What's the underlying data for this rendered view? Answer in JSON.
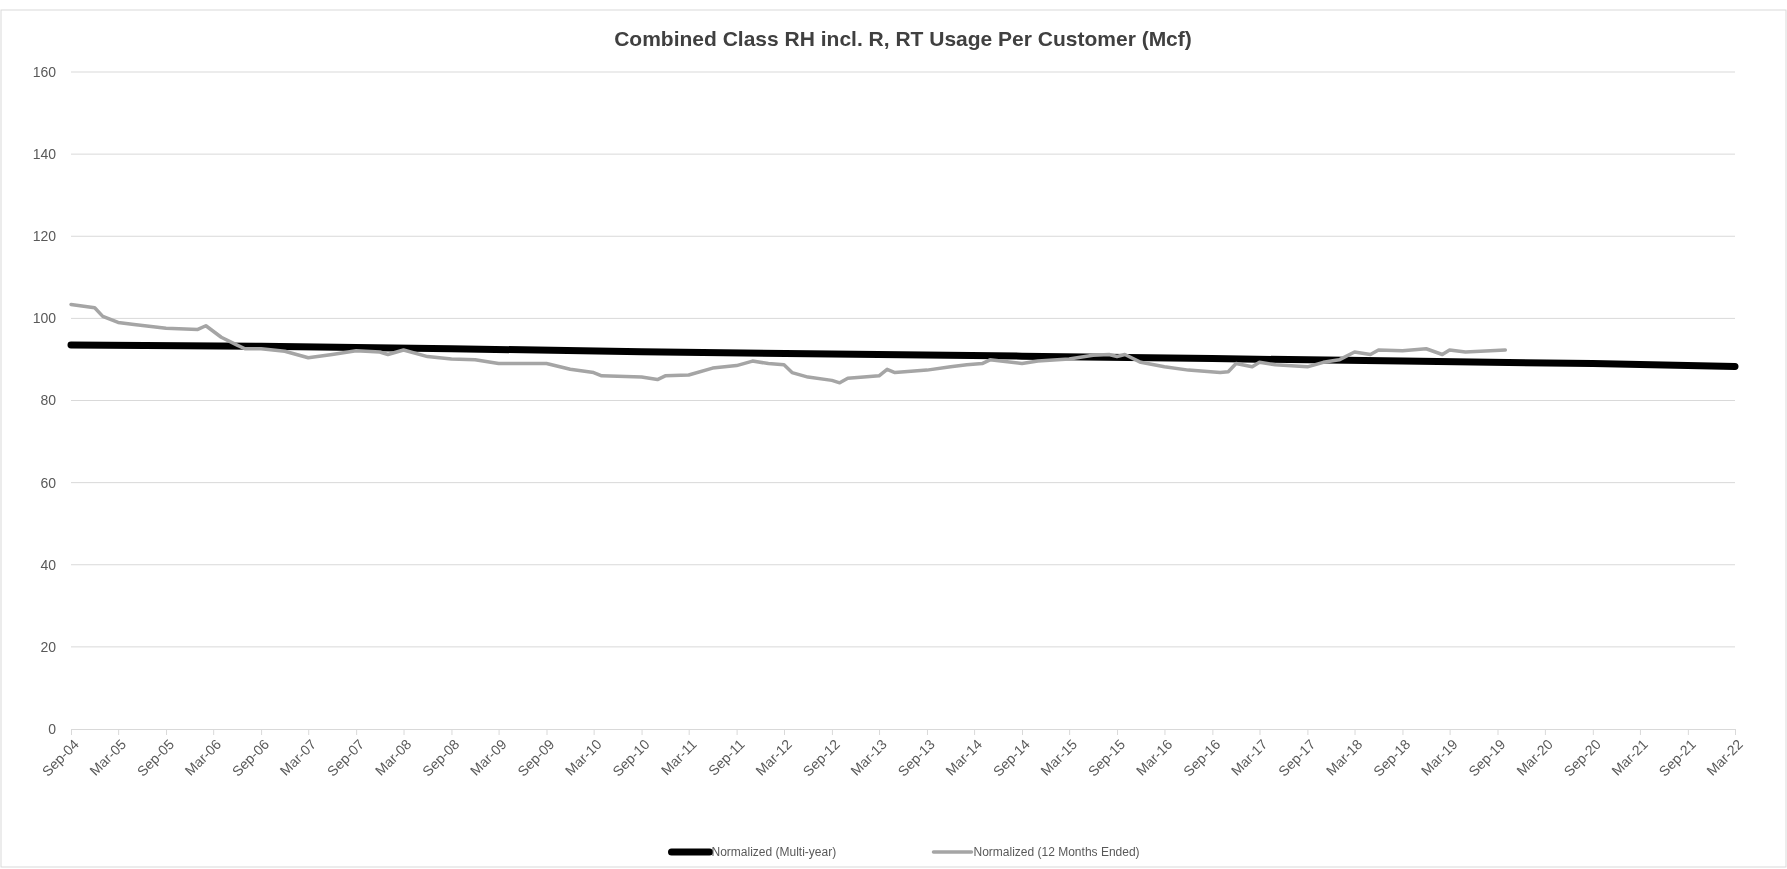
{
  "chart_data": {
    "type": "line",
    "title": "Combined Class RH incl. R, RT Usage Per Customer (Mcf)",
    "ylim": [
      0,
      160
    ],
    "yticks": [
      0,
      20,
      40,
      60,
      80,
      100,
      120,
      140,
      160
    ],
    "grid": "y",
    "legend": "bottom",
    "marker": "none",
    "line_style": "solid",
    "xlim": [
      "2004-09",
      "2022-03"
    ],
    "xticks": [
      {
        "value": "2004-09",
        "label": "Sep-04"
      },
      {
        "value": "2005-03",
        "label": "Mar-05"
      },
      {
        "value": "2005-09",
        "label": "Sep-05"
      },
      {
        "value": "2006-03",
        "label": "Mar-06"
      },
      {
        "value": "2006-09",
        "label": "Sep-06"
      },
      {
        "value": "2007-03",
        "label": "Mar-07"
      },
      {
        "value": "2007-09",
        "label": "Sep-07"
      },
      {
        "value": "2008-03",
        "label": "Mar-08"
      },
      {
        "value": "2008-09",
        "label": "Sep-08"
      },
      {
        "value": "2009-03",
        "label": "Mar-09"
      },
      {
        "value": "2009-09",
        "label": "Sep-09"
      },
      {
        "value": "2010-03",
        "label": "Mar-10"
      },
      {
        "value": "2010-09",
        "label": "Sep-10"
      },
      {
        "value": "2011-03",
        "label": "Mar-11"
      },
      {
        "value": "2011-09",
        "label": "Sep-11"
      },
      {
        "value": "2012-03",
        "label": "Mar-12"
      },
      {
        "value": "2012-09",
        "label": "Sep-12"
      },
      {
        "value": "2013-03",
        "label": "Mar-13"
      },
      {
        "value": "2013-09",
        "label": "Sep-13"
      },
      {
        "value": "2014-03",
        "label": "Mar-14"
      },
      {
        "value": "2014-09",
        "label": "Sep-14"
      },
      {
        "value": "2015-03",
        "label": "Mar-15"
      },
      {
        "value": "2015-09",
        "label": "Sep-15"
      },
      {
        "value": "2016-03",
        "label": "Mar-16"
      },
      {
        "value": "2016-09",
        "label": "Sep-16"
      },
      {
        "value": "2017-03",
        "label": "Mar-17"
      },
      {
        "value": "2017-09",
        "label": "Sep-17"
      },
      {
        "value": "2018-03",
        "label": "Mar-18"
      },
      {
        "value": "2018-09",
        "label": "Sep-18"
      },
      {
        "value": "2019-03",
        "label": "Mar-19"
      },
      {
        "value": "2019-09",
        "label": "Sep-19"
      },
      {
        "value": "2020-03",
        "label": "Mar-20"
      },
      {
        "value": "2020-09",
        "label": "Sep-20"
      },
      {
        "value": "2021-03",
        "label": "Mar-21"
      },
      {
        "value": "2021-09",
        "label": "Sep-21"
      },
      {
        "value": "2022-03",
        "label": "Mar-22"
      }
    ],
    "series": [
      {
        "name": "Normalized (Multi-year)",
        "color": "#000000",
        "x": [
          "2004-09",
          "2006-09",
          "2008-09",
          "2010-09",
          "2012-09",
          "2014-09",
          "2016-09",
          "2018-09",
          "2020-09",
          "2022-03"
        ],
        "values": [
          93.5,
          93.2,
          92.6,
          91.9,
          91.3,
          90.8,
          90.2,
          89.6,
          89.0,
          88.3
        ]
      },
      {
        "name": "Normalized (12 Months Ended)",
        "color": "#a5a5a5",
        "x": [
          "2004-09",
          "2004-12",
          "2005-01",
          "2005-03",
          "2005-05",
          "2005-09",
          "2006-01",
          "2006-02",
          "2006-04",
          "2006-06",
          "2006-07",
          "2006-09",
          "2006-12",
          "2007-03",
          "2007-06",
          "2007-09",
          "2007-12",
          "2008-01",
          "2008-03",
          "2008-06",
          "2008-09",
          "2008-12",
          "2009-03",
          "2009-06",
          "2009-09",
          "2009-12",
          "2010-03",
          "2010-04",
          "2010-09",
          "2010-11",
          "2010-12",
          "2011-03",
          "2011-06",
          "2011-09",
          "2011-11",
          "2012-01",
          "2012-03",
          "2012-04",
          "2012-06",
          "2012-09",
          "2012-10",
          "2012-11",
          "2013-01",
          "2013-03",
          "2013-04",
          "2013-05",
          "2013-09",
          "2013-12",
          "2014-02",
          "2014-04",
          "2014-05",
          "2014-09",
          "2014-11",
          "2015-03",
          "2015-06",
          "2015-08",
          "2015-09",
          "2015-10",
          "2015-12",
          "2016-03",
          "2016-06",
          "2016-10",
          "2016-11",
          "2016-12",
          "2017-02",
          "2017-03",
          "2017-05",
          "2017-09",
          "2017-11",
          "2018-01",
          "2018-03",
          "2018-05",
          "2018-06",
          "2018-09",
          "2018-12",
          "2019-02",
          "2019-03",
          "2019-05",
          "2019-10"
        ],
        "values": [
          103.4,
          102.6,
          100.5,
          99,
          98.5,
          97.6,
          97.3,
          98.2,
          95.4,
          93.5,
          92.6,
          92.6,
          92,
          90.4,
          91.2,
          92.1,
          91.8,
          91.2,
          92.3,
          90.7,
          90.1,
          89.9,
          89,
          89,
          89,
          87.6,
          86.8,
          86,
          85.7,
          85.1,
          86,
          86.2,
          87.9,
          88.5,
          89.6,
          89,
          88.7,
          86.8,
          85.7,
          84.9,
          84.3,
          85.4,
          85.7,
          86,
          87.6,
          86.8,
          87.4,
          88.2,
          88.7,
          89,
          89.9,
          89,
          89.6,
          90.1,
          91,
          91.2,
          90.7,
          91.2,
          89.3,
          88.2,
          87.4,
          86.8,
          87,
          89,
          88.2,
          89.3,
          88.7,
          88.2,
          89.3,
          89.9,
          91.8,
          91.2,
          92.3,
          92.1,
          92.6,
          91.2,
          92.3,
          91.8,
          92.3
        ]
      }
    ]
  }
}
